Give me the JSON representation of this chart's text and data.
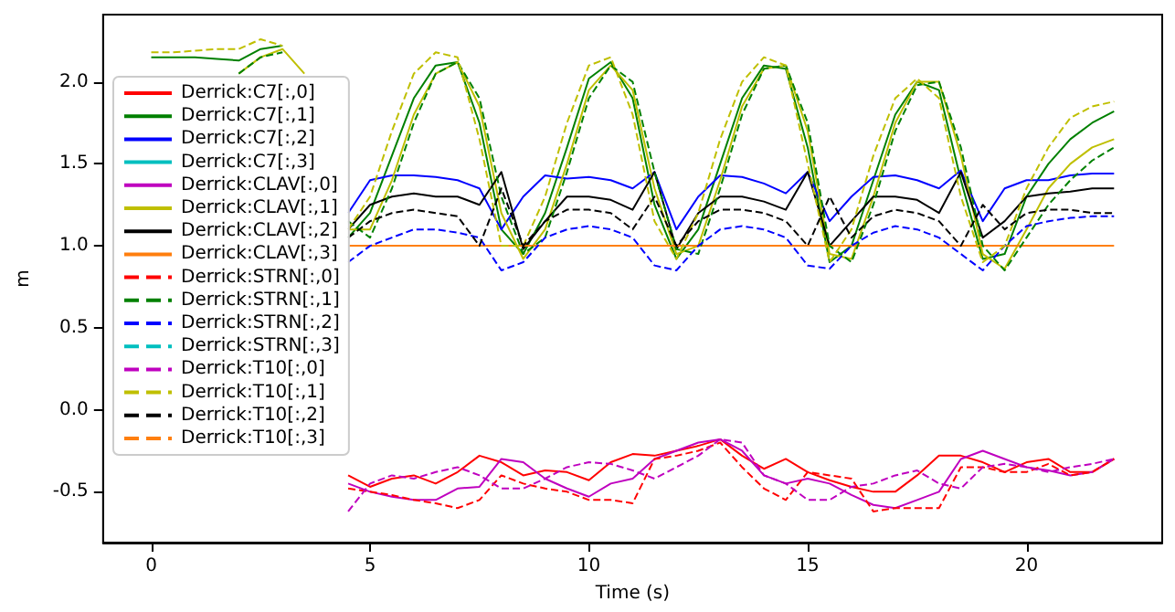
{
  "chart_data": {
    "type": "line",
    "xlabel": "Time (s)",
    "ylabel": "m",
    "xlim": [
      -1.1,
      23.1
    ],
    "ylim": [
      -0.81,
      2.41
    ],
    "xticks": [
      0,
      5,
      10,
      15,
      20
    ],
    "yticks": [
      -0.5,
      {
        "value": 0,
        "label": "0.0"
      },
      0.5,
      {
        "value": 1,
        "label": "1.0"
      },
      1.5,
      {
        "value": 2,
        "label": "2.0"
      }
    ],
    "grid": false,
    "legend": "left",
    "marker": "none",
    "x": [
      0,
      0.5,
      1,
      1.5,
      2,
      2.5,
      3,
      3.5,
      4,
      4.5,
      5,
      5.5,
      6,
      6.5,
      7,
      7.5,
      8,
      8.5,
      9,
      9.5,
      10,
      10.5,
      11,
      11.5,
      12,
      12.5,
      13,
      13.5,
      14,
      14.5,
      15,
      15.5,
      16,
      16.5,
      17,
      17.5,
      18,
      18.5,
      19,
      19.5,
      20,
      20.5,
      21,
      21.5,
      22
    ],
    "series": [
      {
        "name": "Derrick:C7[:,0]",
        "color": "#ff0000",
        "line_style": "solid",
        "values": [
          null,
          null,
          null,
          null,
          null,
          null,
          null,
          null,
          null,
          -0.4,
          -0.47,
          -0.42,
          -0.4,
          -0.45,
          -0.38,
          -0.28,
          -0.32,
          -0.4,
          -0.37,
          -0.38,
          -0.43,
          -0.32,
          -0.27,
          -0.28,
          -0.25,
          -0.22,
          -0.18,
          -0.28,
          -0.36,
          -0.3,
          -0.38,
          -0.43,
          -0.47,
          -0.5,
          -0.5,
          -0.4,
          -0.28,
          -0.28,
          -0.32,
          -0.38,
          -0.32,
          -0.3,
          -0.38,
          -0.38,
          -0.3
        ]
      },
      {
        "name": "Derrick:C7[:,1]",
        "color": "#008000",
        "line_style": "solid",
        "values": [
          2.15,
          2.15,
          2.15,
          2.14,
          2.13,
          2.2,
          2.22,
          null,
          null,
          1.05,
          1.2,
          1.55,
          1.9,
          2.1,
          2.12,
          1.75,
          1.1,
          0.95,
          1.2,
          1.6,
          2.02,
          2.12,
          1.9,
          1.25,
          0.92,
          1.1,
          1.5,
          1.9,
          2.1,
          2.08,
          1.6,
          0.9,
          1.0,
          1.4,
          1.8,
          2.0,
          1.95,
          1.4,
          0.92,
          0.95,
          1.3,
          1.5,
          1.65,
          1.75,
          1.82
        ]
      },
      {
        "name": "Derrick:C7[:,2]",
        "color": "#0000ff",
        "line_style": "solid",
        "values": [
          null,
          null,
          null,
          null,
          null,
          null,
          null,
          null,
          null,
          1.2,
          1.4,
          1.43,
          1.43,
          1.42,
          1.4,
          1.35,
          1.1,
          1.3,
          1.43,
          1.41,
          1.42,
          1.4,
          1.35,
          1.45,
          1.1,
          1.3,
          1.43,
          1.42,
          1.38,
          1.32,
          1.45,
          1.15,
          1.3,
          1.42,
          1.43,
          1.4,
          1.35,
          1.46,
          1.15,
          1.35,
          1.4,
          1.4,
          1.43,
          1.44,
          1.44
        ]
      },
      {
        "name": "Derrick:C7[:,3]",
        "color": "#00bfbf",
        "line_style": "solid",
        "values": [
          null,
          null,
          null,
          null,
          null,
          null,
          null,
          null,
          null,
          null,
          null,
          null,
          null,
          null,
          null,
          null,
          null,
          null,
          null,
          null,
          null,
          null,
          null,
          null,
          null,
          null,
          null,
          null,
          null,
          null,
          null,
          null,
          null,
          null,
          null,
          null,
          null,
          null,
          null,
          null,
          null,
          null,
          null,
          null,
          null
        ]
      },
      {
        "name": "Derrick:CLAV[:,0]",
        "color": "#bf00bf",
        "line_style": "solid",
        "values": [
          null,
          null,
          null,
          null,
          null,
          null,
          null,
          null,
          null,
          -0.45,
          -0.5,
          -0.53,
          -0.55,
          -0.55,
          -0.48,
          -0.47,
          -0.3,
          -0.32,
          -0.42,
          -0.48,
          -0.53,
          -0.45,
          -0.42,
          -0.3,
          -0.25,
          -0.2,
          -0.18,
          -0.25,
          -0.4,
          -0.45,
          -0.42,
          -0.45,
          -0.52,
          -0.58,
          -0.6,
          -0.55,
          -0.5,
          -0.3,
          -0.25,
          -0.3,
          -0.35,
          -0.37,
          -0.4,
          -0.38,
          -0.3
        ]
      },
      {
        "name": "Derrick:CLAV[:,1]",
        "color": "#bfbf00",
        "line_style": "solid",
        "values": [
          null,
          null,
          null,
          null,
          2.05,
          2.15,
          2.2,
          2.05,
          null,
          1.1,
          1.1,
          1.4,
          1.8,
          2.05,
          2.12,
          1.85,
          1.2,
          0.92,
          1.1,
          1.5,
          1.95,
          2.1,
          1.95,
          1.35,
          0.95,
          1.0,
          1.4,
          1.85,
          2.08,
          2.1,
          1.7,
          0.95,
          0.92,
          1.3,
          1.75,
          2.0,
          2.0,
          1.55,
          0.95,
          0.86,
          1.1,
          1.35,
          1.5,
          1.6,
          1.65
        ]
      },
      {
        "name": "Derrick:CLAV[:,2]",
        "color": "#000000",
        "line_style": "solid",
        "values": [
          null,
          null,
          null,
          null,
          null,
          null,
          null,
          null,
          null,
          1.1,
          1.25,
          1.3,
          1.32,
          1.3,
          1.3,
          1.25,
          1.45,
          0.98,
          1.15,
          1.3,
          1.3,
          1.28,
          1.22,
          1.45,
          0.98,
          1.2,
          1.3,
          1.3,
          1.27,
          1.22,
          1.45,
          1.0,
          1.15,
          1.3,
          1.3,
          1.28,
          1.2,
          1.45,
          1.05,
          1.15,
          1.3,
          1.32,
          1.33,
          1.35,
          1.35
        ]
      },
      {
        "name": "Derrick:CLAV[:,3]",
        "color": "#ff7f0e",
        "line_style": "solid",
        "x": [
          4.5,
          22
        ],
        "values": [
          1.0,
          1.0
        ]
      },
      {
        "name": "Derrick:STRN[:,0]",
        "color": "#ff0000",
        "line_style": "dashed",
        "values": [
          null,
          null,
          null,
          null,
          null,
          null,
          null,
          null,
          null,
          -0.48,
          -0.5,
          -0.52,
          -0.55,
          -0.57,
          -0.6,
          -0.55,
          -0.4,
          -0.45,
          -0.48,
          -0.5,
          -0.55,
          -0.55,
          -0.57,
          -0.3,
          -0.28,
          -0.25,
          -0.2,
          -0.35,
          -0.48,
          -0.55,
          -0.38,
          -0.4,
          -0.42,
          -0.62,
          -0.6,
          -0.6,
          -0.6,
          -0.35,
          -0.35,
          -0.38,
          -0.38,
          -0.33,
          -0.4,
          -0.38,
          -0.3
        ]
      },
      {
        "name": "Derrick:STRN[:,1]",
        "color": "#008000",
        "line_style": "dashed",
        "values": [
          null,
          null,
          null,
          null,
          2.05,
          2.15,
          2.18,
          null,
          null,
          1.15,
          1.05,
          1.35,
          1.75,
          2.05,
          2.12,
          1.9,
          1.3,
          0.95,
          1.05,
          1.45,
          1.9,
          2.1,
          2.0,
          1.45,
          0.98,
          0.95,
          1.35,
          1.8,
          2.08,
          2.1,
          1.75,
          1.0,
          0.9,
          1.25,
          1.7,
          1.98,
          2.0,
          1.6,
          1.0,
          0.85,
          1.05,
          1.25,
          1.4,
          1.52,
          1.6
        ]
      },
      {
        "name": "Derrick:STRN[:,2]",
        "color": "#0000ff",
        "line_style": "dashed",
        "values": [
          null,
          null,
          null,
          null,
          null,
          null,
          null,
          null,
          null,
          0.9,
          1.0,
          1.05,
          1.1,
          1.1,
          1.08,
          1.05,
          0.85,
          0.9,
          1.05,
          1.1,
          1.12,
          1.1,
          1.05,
          0.88,
          0.85,
          1.0,
          1.1,
          1.12,
          1.1,
          1.05,
          0.88,
          0.86,
          1.0,
          1.08,
          1.12,
          1.1,
          1.05,
          0.95,
          0.85,
          1.0,
          1.12,
          1.15,
          1.17,
          1.18,
          1.18
        ]
      },
      {
        "name": "Derrick:STRN[:,3]",
        "color": "#00bfbf",
        "line_style": "dashed",
        "values": [
          null,
          null,
          null,
          null,
          null,
          null,
          null,
          null,
          null,
          null,
          null,
          null,
          null,
          null,
          null,
          null,
          null,
          null,
          null,
          null,
          null,
          null,
          null,
          null,
          null,
          null,
          null,
          null,
          null,
          null,
          null,
          null,
          null,
          null,
          null,
          null,
          null,
          null,
          null,
          null,
          null,
          null,
          null,
          null,
          null
        ]
      },
      {
        "name": "Derrick:T10[:,0]",
        "color": "#bf00bf",
        "line_style": "dashed",
        "values": [
          null,
          null,
          null,
          null,
          null,
          null,
          null,
          null,
          null,
          -0.62,
          -0.45,
          -0.4,
          -0.42,
          -0.38,
          -0.35,
          -0.4,
          -0.48,
          -0.48,
          -0.42,
          -0.35,
          -0.32,
          -0.33,
          -0.37,
          -0.42,
          -0.35,
          -0.28,
          -0.18,
          -0.2,
          -0.4,
          -0.45,
          -0.55,
          -0.55,
          -0.47,
          -0.45,
          -0.4,
          -0.37,
          -0.45,
          -0.48,
          -0.35,
          -0.33,
          -0.35,
          -0.38,
          -0.35,
          -0.33,
          -0.3
        ]
      },
      {
        "name": "Derrick:T10[:,1]",
        "color": "#bfbf00",
        "line_style": "dashed",
        "values": [
          2.18,
          2.18,
          2.19,
          2.2,
          2.2,
          2.26,
          2.22,
          null,
          null,
          1.1,
          1.3,
          1.7,
          2.05,
          2.18,
          2.15,
          1.65,
          1.0,
          1.0,
          1.3,
          1.75,
          2.1,
          2.15,
          1.8,
          1.15,
          0.92,
          1.2,
          1.65,
          2.0,
          2.15,
          2.1,
          1.5,
          0.9,
          1.1,
          1.55,
          1.9,
          2.02,
          1.9,
          1.3,
          0.9,
          1.0,
          1.35,
          1.6,
          1.78,
          1.85,
          1.88
        ]
      },
      {
        "name": "Derrick:T10[:,2]",
        "color": "#000000",
        "line_style": "dashed",
        "values": [
          null,
          null,
          null,
          null,
          null,
          null,
          null,
          null,
          null,
          1.05,
          1.15,
          1.2,
          1.22,
          1.2,
          1.18,
          1.0,
          1.35,
          1.0,
          1.15,
          1.22,
          1.22,
          1.2,
          1.1,
          1.3,
          1.0,
          1.15,
          1.22,
          1.22,
          1.2,
          1.15,
          1.0,
          1.3,
          1.05,
          1.18,
          1.22,
          1.2,
          1.15,
          1.0,
          1.25,
          1.1,
          1.2,
          1.22,
          1.22,
          1.2,
          1.2
        ]
      },
      {
        "name": "Derrick:T10[:,3]",
        "color": "#ff7f0e",
        "line_style": "dashed",
        "values": [
          null,
          null,
          null,
          null,
          null,
          null,
          null,
          null,
          null,
          null,
          null,
          null,
          null,
          null,
          null,
          null,
          null,
          null,
          null,
          null,
          null,
          null,
          null,
          null,
          null,
          null,
          null,
          null,
          null,
          null,
          null,
          null,
          null,
          null,
          null,
          null,
          null,
          null,
          null,
          null,
          null,
          null,
          null,
          null,
          null
        ]
      }
    ]
  }
}
